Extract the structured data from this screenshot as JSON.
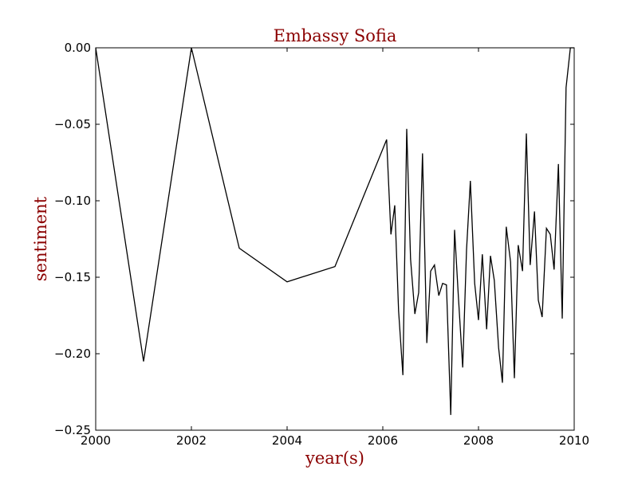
{
  "chart_data": {
    "type": "line",
    "title": "Embassy Sofia",
    "xlabel": "year(s)",
    "ylabel": "sentiment",
    "xlim": [
      2000,
      2010
    ],
    "ylim": [
      -0.25,
      0.0
    ],
    "x_ticks": [
      "2000",
      "2002",
      "2004",
      "2006",
      "2008",
      "2010"
    ],
    "y_ticks": [
      "0.00",
      "−0.05",
      "−0.10",
      "−0.15",
      "−0.20",
      "−0.25"
    ],
    "x_tick_values": [
      2000,
      2002,
      2004,
      2006,
      2008,
      2010
    ],
    "y_tick_values": [
      0.0,
      -0.05,
      -0.1,
      -0.15,
      -0.2,
      -0.25
    ],
    "grid": false,
    "colors": {
      "line": "#000000",
      "title": "#8b0000",
      "axis_label": "#8b0000"
    },
    "series": [
      {
        "x": [
          2000.0,
          2001.0,
          2002.0,
          2003.0,
          2004.0,
          2005.0,
          2006.08,
          2006.17,
          2006.25,
          2006.33,
          2006.42,
          2006.5,
          2006.58,
          2006.67,
          2006.75,
          2006.83,
          2006.92,
          2007.0,
          2007.08,
          2007.17,
          2007.25,
          2007.33,
          2007.42,
          2007.5,
          2007.58,
          2007.67,
          2007.75,
          2007.83,
          2007.92,
          2008.0,
          2008.08,
          2008.17,
          2008.25,
          2008.33,
          2008.42,
          2008.5,
          2008.58,
          2008.67,
          2008.75,
          2008.83,
          2008.92,
          2009.0,
          2009.08,
          2009.17,
          2009.25,
          2009.33,
          2009.42,
          2009.5,
          2009.58,
          2009.67,
          2009.75,
          2009.83,
          2009.92,
          2010.0
        ],
        "y": [
          0.0,
          -0.205,
          0.0,
          -0.131,
          -0.153,
          -0.143,
          -0.06,
          -0.122,
          -0.103,
          -0.172,
          -0.214,
          -0.053,
          -0.138,
          -0.174,
          -0.16,
          -0.069,
          -0.193,
          -0.146,
          -0.142,
          -0.162,
          -0.154,
          -0.155,
          -0.24,
          -0.119,
          -0.163,
          -0.209,
          -0.132,
          -0.087,
          -0.154,
          -0.178,
          -0.135,
          -0.184,
          -0.136,
          -0.152,
          -0.196,
          -0.219,
          -0.117,
          -0.14,
          -0.216,
          -0.129,
          -0.146,
          -0.056,
          -0.142,
          -0.107,
          -0.165,
          -0.176,
          -0.118,
          -0.122,
          -0.145,
          -0.076,
          -0.177,
          -0.026,
          0.0,
          0.0
        ]
      }
    ]
  }
}
